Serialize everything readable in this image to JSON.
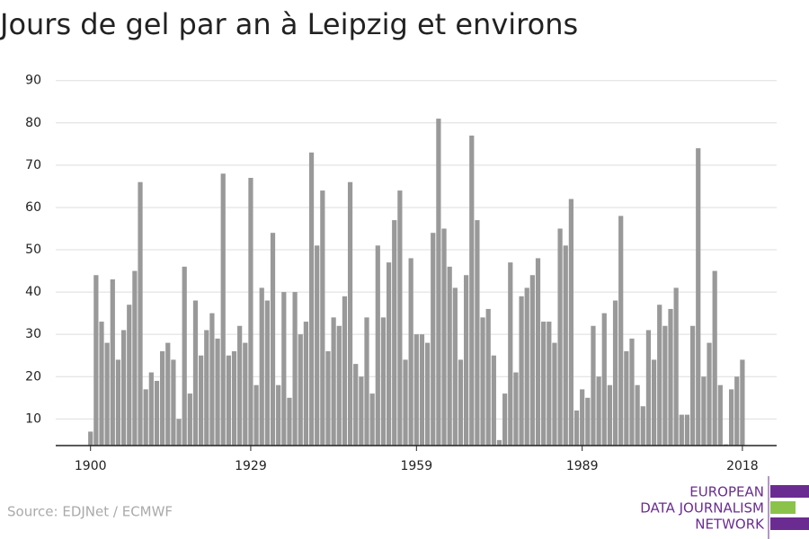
{
  "chart_data": {
    "type": "bar",
    "title": "Jours de gel par an à Leipzig et environs",
    "source": "Source: EDJNet / ECMWF",
    "logo": [
      "EUROPEAN",
      "DATA JOURNALISM",
      "NETWORK"
    ],
    "color": "#999999",
    "grid": true,
    "x": [
      1900,
      1901,
      1902,
      1903,
      1904,
      1905,
      1906,
      1907,
      1908,
      1909,
      1910,
      1911,
      1912,
      1913,
      1914,
      1915,
      1916,
      1917,
      1918,
      1919,
      1920,
      1921,
      1922,
      1923,
      1924,
      1925,
      1926,
      1927,
      1928,
      1929,
      1930,
      1931,
      1932,
      1933,
      1934,
      1935,
      1936,
      1937,
      1938,
      1939,
      1940,
      1941,
      1942,
      1943,
      1944,
      1945,
      1946,
      1947,
      1948,
      1949,
      1950,
      1951,
      1952,
      1953,
      1954,
      1955,
      1956,
      1957,
      1958,
      1959,
      1960,
      1961,
      1962,
      1963,
      1964,
      1965,
      1966,
      1967,
      1968,
      1969,
      1970,
      1971,
      1972,
      1973,
      1974,
      1975,
      1976,
      1977,
      1978,
      1979,
      1980,
      1981,
      1982,
      1983,
      1984,
      1985,
      1986,
      1987,
      1988,
      1989,
      1990,
      1991,
      1992,
      1993,
      1994,
      1995,
      1996,
      1997,
      1998,
      1999,
      2000,
      2001,
      2002,
      2003,
      2004,
      2005,
      2006,
      2007,
      2008,
      2009,
      2010,
      2011,
      2012,
      2013,
      2014,
      2015,
      2016,
      2017,
      2018
    ],
    "values": [
      7,
      44,
      33,
      28,
      43,
      24,
      31,
      37,
      45,
      66,
      17,
      21,
      19,
      26,
      28,
      24,
      10,
      46,
      16,
      38,
      25,
      31,
      35,
      29,
      68,
      25,
      26,
      32,
      28,
      67,
      18,
      41,
      38,
      54,
      18,
      40,
      15,
      40,
      30,
      33,
      73,
      51,
      64,
      26,
      34,
      32,
      39,
      66,
      23,
      20,
      34,
      16,
      51,
      34,
      47,
      57,
      64,
      24,
      48,
      30,
      30,
      28,
      54,
      81,
      55,
      46,
      41,
      24,
      44,
      77,
      57,
      34,
      36,
      25,
      5,
      16,
      47,
      21,
      39,
      41,
      44,
      48,
      33,
      33,
      28,
      55,
      51,
      62,
      12,
      17,
      15,
      32,
      20,
      35,
      18,
      38,
      58,
      26,
      29,
      18,
      13,
      31,
      24,
      37,
      32,
      36,
      41,
      11,
      11,
      32,
      74,
      20,
      28,
      45,
      18,
      4,
      17,
      20,
      24
    ],
    "xlim": [
      1893.7,
      2024.2
    ],
    "xticks": [
      1900,
      1929,
      1959,
      1989,
      2018
    ],
    "ylim": [
      3.7,
      91
    ],
    "yticks": [
      10,
      20,
      30,
      40,
      50,
      60,
      70,
      80,
      90
    ]
  }
}
